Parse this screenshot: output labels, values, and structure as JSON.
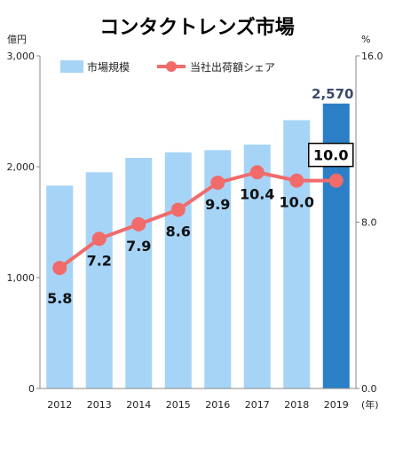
{
  "chart_data": {
    "type": "bar+line",
    "title": "コンタクトレンズ市場",
    "left_unit": "億円",
    "right_unit": "%",
    "x_suffix": "(年)",
    "categories": [
      "2012",
      "2013",
      "2014",
      "2015",
      "2016",
      "2017",
      "2018",
      "2019"
    ],
    "left_ticks": [
      "0",
      "1,000",
      "2,000",
      "3,000"
    ],
    "right_ticks": [
      "0.0",
      "8.0",
      "16.0"
    ],
    "ylim_left": [
      0,
      3000
    ],
    "ylim_right": [
      0,
      16
    ],
    "series": [
      {
        "name": "市場規模",
        "kind": "bar",
        "axis": "left",
        "color": "#a6d4f7",
        "highlight_color": "#2a7fc7",
        "values": [
          1830,
          1950,
          2080,
          2130,
          2150,
          2200,
          2420,
          2570
        ]
      },
      {
        "name": "当社出荷額シェア",
        "kind": "line",
        "axis": "right",
        "color": "#f26b6b",
        "values": [
          5.8,
          7.2,
          7.9,
          8.6,
          9.9,
          10.4,
          10.0,
          10.0
        ]
      }
    ],
    "point_labels": [
      "5.8",
      "7.2",
      "7.9",
      "8.6",
      "9.9",
      "10.4",
      "10.0",
      ""
    ],
    "annotation_bar": "2,570",
    "annotation_box": "10.0",
    "grid": false,
    "legend": "top"
  }
}
